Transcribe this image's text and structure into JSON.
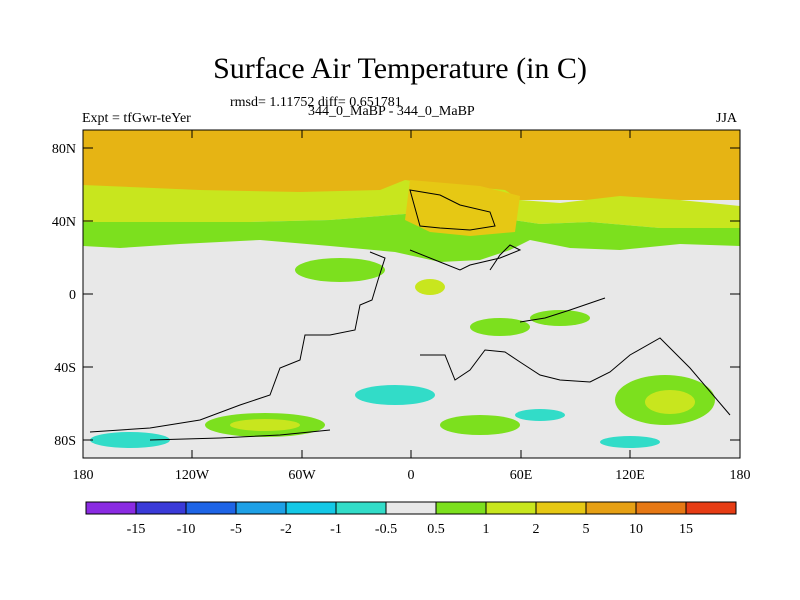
{
  "figure": {
    "title": "Surface Air Temperature (in C)",
    "stats": "rmsd= 1.11752 diff= 0.651781",
    "left_label": "Expt = tfGwr-teYer",
    "center_label": "344_0_MaBP - 344_0_MaBP",
    "right_label": "JJA"
  },
  "axes": {
    "lat_labels": [
      "80N",
      "40N",
      "0",
      "40S",
      "80S"
    ],
    "lon_labels": [
      "180",
      "120W",
      "60W",
      "0",
      "60E",
      "120E",
      "180"
    ]
  },
  "legend": {
    "colors": [
      "#8a2be2",
      "#3a3ad8",
      "#1e64e6",
      "#1ea0e6",
      "#14c8e6",
      "#32dcc8",
      "#e8e8e8",
      "#7ce01e",
      "#c8e61e",
      "#e6c814",
      "#e6a014",
      "#e67814",
      "#e63c14"
    ],
    "labels": [
      "-15",
      "-10",
      "-5",
      "-2",
      "-1",
      "-0.5",
      "0.5",
      "1",
      "2",
      "5",
      "10",
      "15"
    ]
  }
}
